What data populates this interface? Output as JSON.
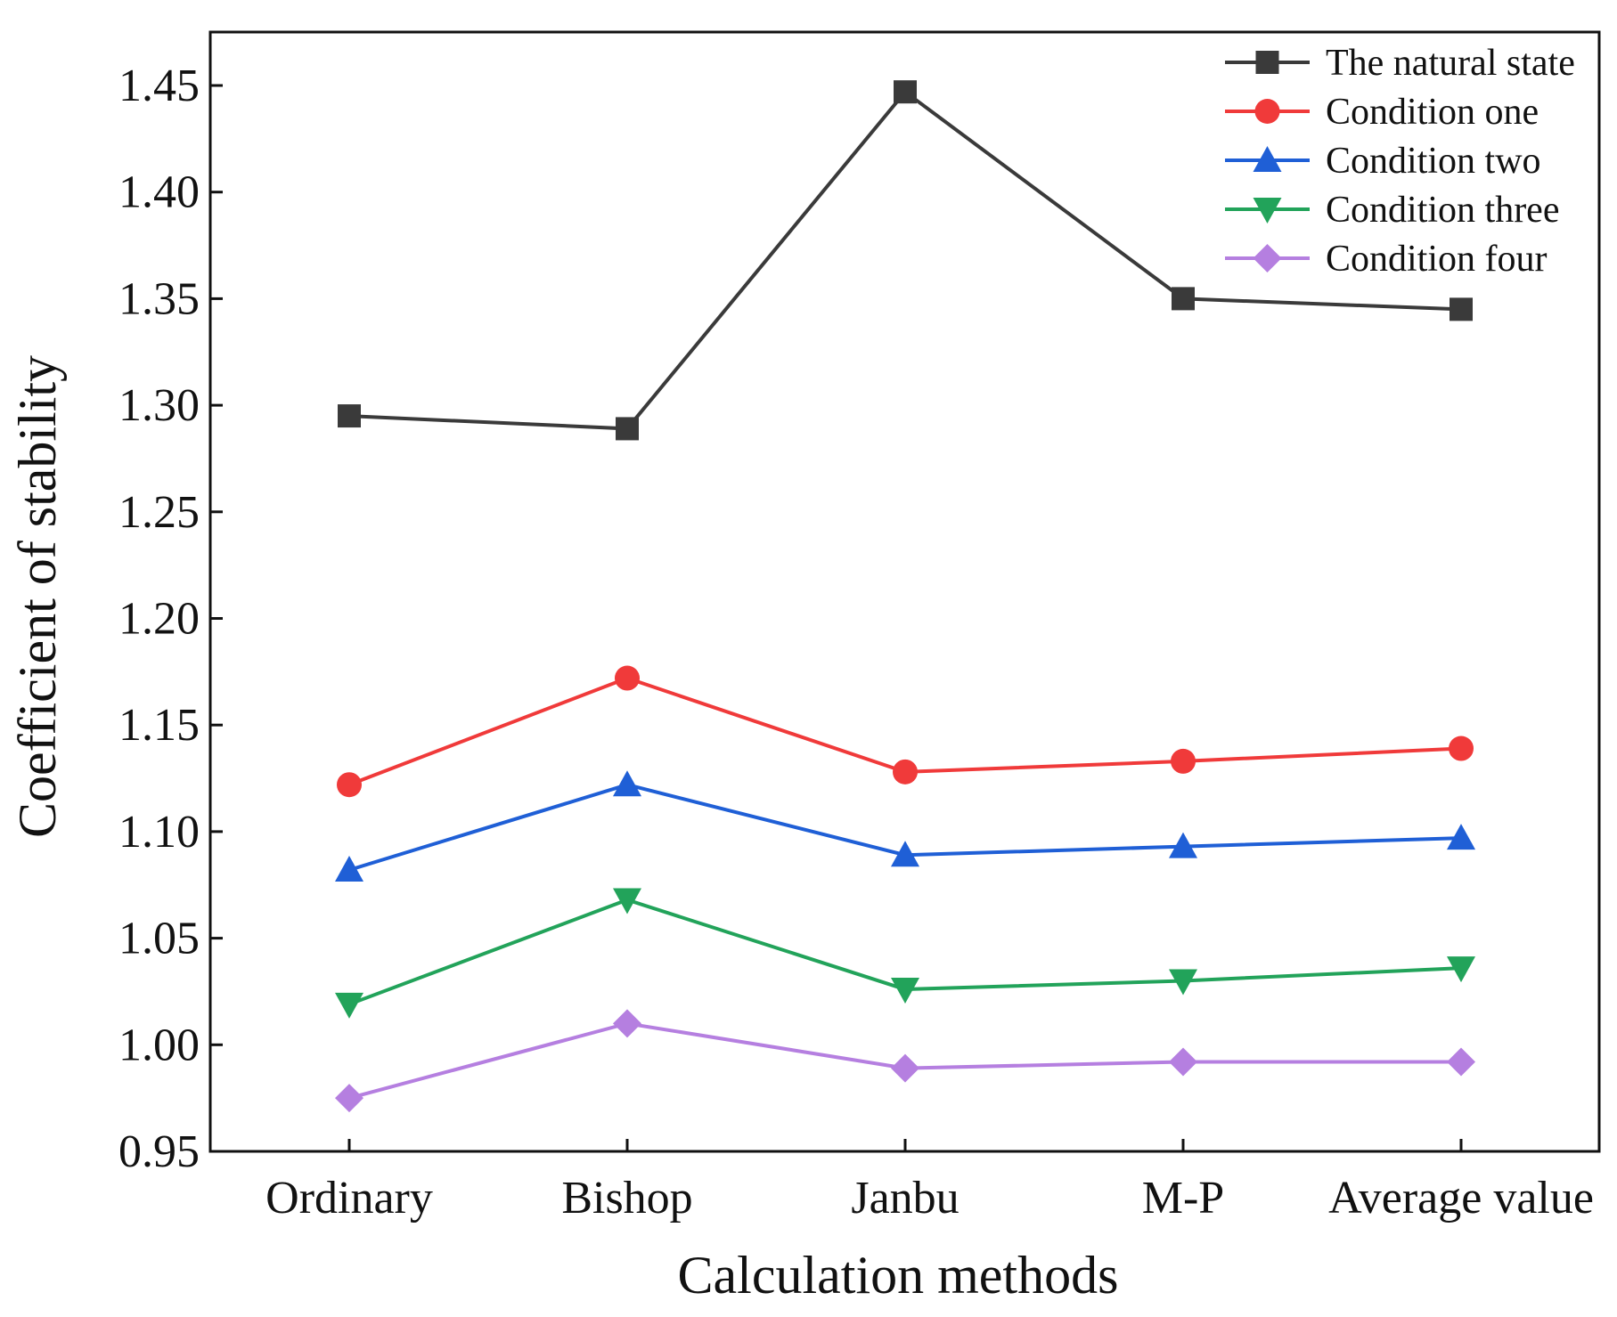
{
  "chart_data": {
    "type": "line",
    "title": "",
    "xlabel": "Calculation methods",
    "ylabel": "Coefficient of stability",
    "categories": [
      "Ordinary",
      "Bishop",
      "Janbu",
      "M-P",
      "Average value"
    ],
    "ylim": [
      0.95,
      1.47
    ],
    "yticks": [
      0.95,
      1.0,
      1.05,
      1.1,
      1.15,
      1.2,
      1.25,
      1.3,
      1.35,
      1.4,
      1.45
    ],
    "ytick_labels": [
      "0.95",
      "1.00",
      "1.05",
      "1.10",
      "1.15",
      "1.20",
      "1.25",
      "1.30",
      "1.35",
      "1.40",
      "1.45"
    ],
    "grid": false,
    "legend_position": "top-right",
    "series": [
      {
        "name": "The natural state",
        "color": "#3a3a3a",
        "marker": "square",
        "values": [
          1.295,
          1.289,
          1.447,
          1.35,
          1.345
        ]
      },
      {
        "name": "Condition one",
        "color": "#f03a3a",
        "marker": "circle",
        "values": [
          1.122,
          1.172,
          1.128,
          1.133,
          1.139
        ]
      },
      {
        "name": "Condition two",
        "color": "#1f5fd6",
        "marker": "triangle-up",
        "values": [
          1.082,
          1.122,
          1.089,
          1.093,
          1.097
        ]
      },
      {
        "name": "Condition three",
        "color": "#22a35a",
        "marker": "triangle-down",
        "values": [
          1.019,
          1.068,
          1.026,
          1.03,
          1.036
        ]
      },
      {
        "name": "Condition four",
        "color": "#b57fe0",
        "marker": "diamond",
        "values": [
          0.975,
          1.01,
          0.989,
          0.992,
          0.992
        ]
      }
    ]
  }
}
